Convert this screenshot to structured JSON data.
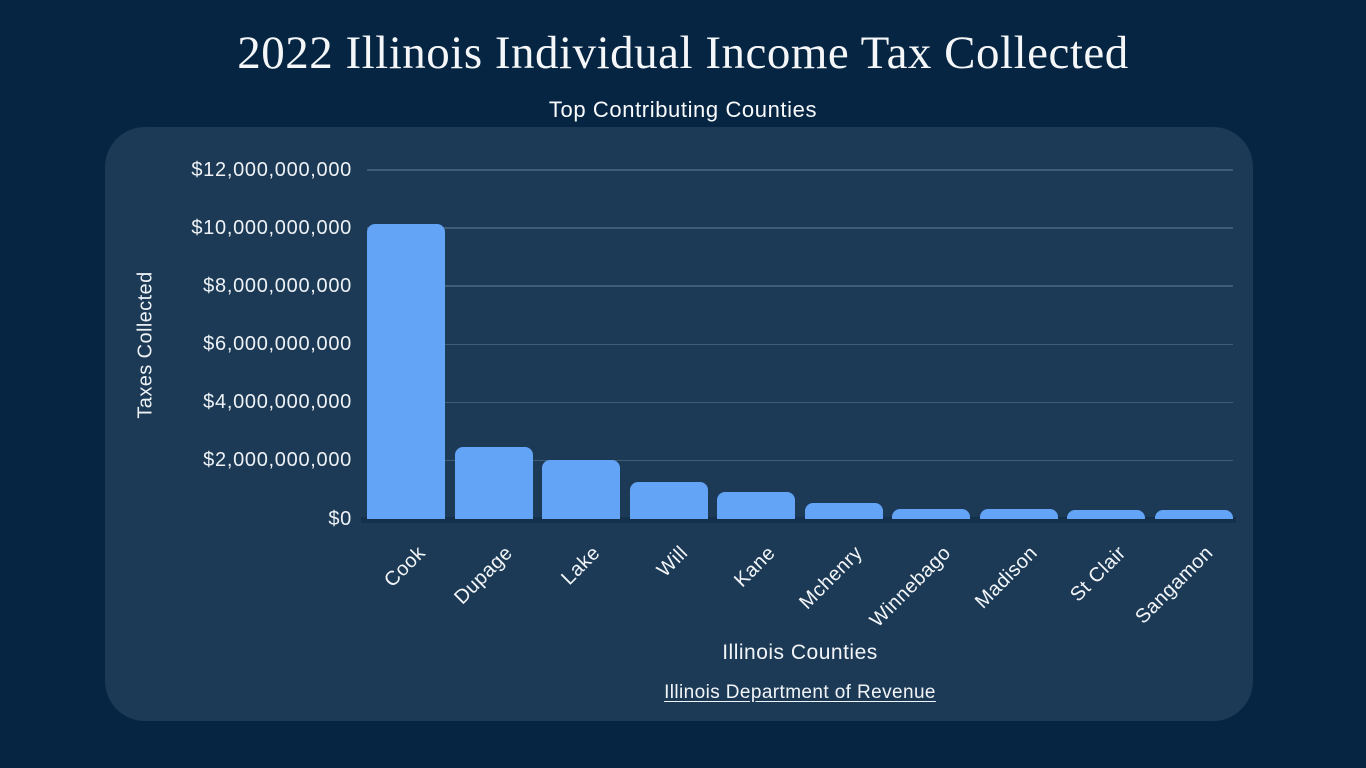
{
  "page": {
    "title": "2022 Illinois Individual Income Tax Collected",
    "subtitle": "Top Contributing Counties"
  },
  "chart_data": {
    "type": "bar",
    "title": "2022 Illinois Individual Income Tax Collected",
    "subtitle": "Top Contributing Counties",
    "xlabel": "Illinois Counties",
    "ylabel": "Taxes Collected",
    "source": "Illinois Department of Revenue",
    "categories": [
      "Cook",
      "Dupage",
      "Lake",
      "Will",
      "Kane",
      "Mchenry",
      "Winnebago",
      "Madison",
      "St Clair",
      "Sangamon"
    ],
    "values": [
      10150000000,
      2450000000,
      2000000000,
      1250000000,
      900000000,
      550000000,
      320000000,
      340000000,
      280000000,
      300000000
    ],
    "ylim": [
      0,
      12000000000
    ],
    "ytick_step": 2000000000,
    "ytick_labels": [
      "$0",
      "$2,000,000,000",
      "$4,000,000,000",
      "$6,000,000,000",
      "$8,000,000,000",
      "$10,000,000,000",
      "$12,000,000,000"
    ],
    "grid": true,
    "legend": "none",
    "bar_color": "#64a4f7",
    "panel_color": "#1c3a55",
    "background_color": "#052543",
    "text_color": "#f2f5f8",
    "gridline_color": "rgba(198,219,240,0.22)"
  }
}
